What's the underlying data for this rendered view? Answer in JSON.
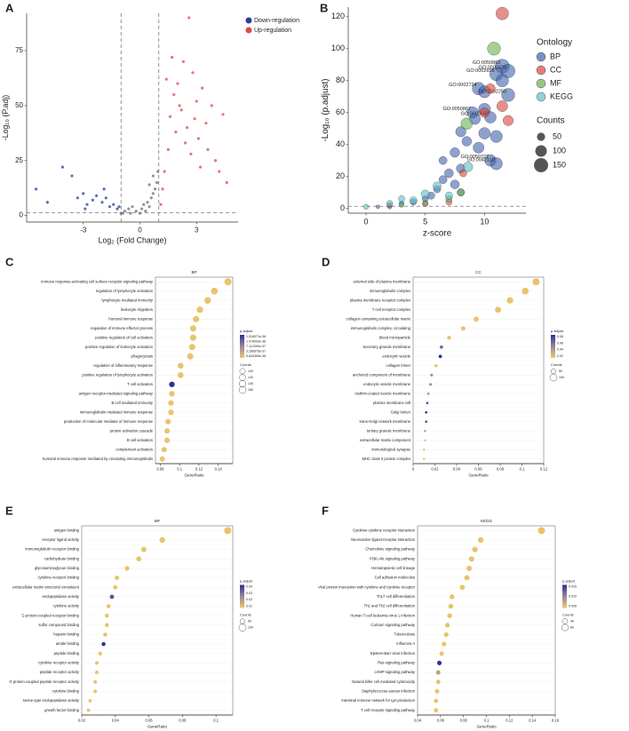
{
  "chart_data": [
    {
      "type": "volcano",
      "panel": "A",
      "xlabel": "Log₂ (Fold Change)",
      "ylabel": "-Log₁₀ (P.adj)",
      "xlim": [
        -6,
        5.2
      ],
      "ylim": [
        -3,
        92
      ],
      "xticks": [
        -3,
        0,
        3
      ],
      "yticks": [
        0,
        25,
        50,
        75
      ],
      "vlines": [
        -1,
        1
      ],
      "hline": 1.3,
      "legend": "top-right",
      "series": [
        {
          "color": "#707070",
          "x": [
            -1.0,
            -0.8,
            -0.6,
            -0.5,
            -0.4,
            -0.2,
            0,
            0.1,
            0.2,
            0.3,
            0.4,
            0.5,
            0.6,
            0.7,
            0.8,
            0.9,
            0.95,
            -0.9,
            0.5,
            0.7
          ],
          "values": [
            1,
            2,
            3,
            1,
            4,
            2,
            1,
            3,
            5,
            2,
            6,
            4,
            8,
            10,
            12,
            15,
            20,
            1,
            14,
            18
          ]
        },
        {
          "name": "Down-regulation",
          "color": "#263f9b",
          "x": [
            -5.5,
            -4.9,
            -4.1,
            -3.6,
            -3.3,
            -3.0,
            -2.8,
            -2.5,
            -2.3,
            -2.0,
            -1.8,
            -1.6,
            -1.4,
            -1.2,
            -1.1,
            -2.9,
            -1.9
          ],
          "values": [
            12,
            6,
            22,
            18,
            8,
            10,
            5,
            7,
            9,
            6,
            8,
            4,
            5,
            3,
            4,
            3,
            12
          ]
        },
        {
          "name": "Up-regulation",
          "color": "#d94a4a",
          "x": [
            1.1,
            1.2,
            1.3,
            1.5,
            1.6,
            1.8,
            1.9,
            2.0,
            2.2,
            2.3,
            2.5,
            2.6,
            2.8,
            3.0,
            3.1,
            3.3,
            3.5,
            3.6,
            3.8,
            4.0,
            4.2,
            4.4,
            4.6,
            1.4,
            1.7,
            2.1,
            2.4,
            2.7,
            2.9,
            3.2
          ],
          "values": [
            5,
            12,
            20,
            30,
            45,
            55,
            38,
            60,
            48,
            70,
            40,
            90,
            65,
            52,
            35,
            58,
            42,
            30,
            50,
            25,
            20,
            46,
            15,
            62,
            72,
            50,
            33,
            28,
            44,
            22
          ]
        }
      ]
    },
    {
      "type": "bubble",
      "panel": "B",
      "xlabel": "z-score",
      "ylabel": "-Log₁₀ (p.adjust)",
      "xlim": [
        -1.5,
        13.5
      ],
      "ylim": [
        -3,
        126
      ],
      "xticks": [
        0,
        5,
        10
      ],
      "yticks": [
        0,
        20,
        40,
        60,
        80,
        100,
        120
      ],
      "hline": 1.3,
      "legend_title": "Ontology",
      "size_title": "Counts",
      "size_legend": [
        50,
        100,
        150
      ],
      "series": [
        {
          "name": "BP",
          "color": "#3f62ad",
          "x": [
            11.5,
            12,
            11,
            11.5,
            9.5,
            10,
            12,
            9,
            10,
            10.5,
            9.2,
            10,
            11,
            9.5,
            10.5,
            11,
            8,
            8.5,
            7.5,
            8,
            7,
            6.5,
            7.5,
            6,
            5.5,
            5,
            4,
            3,
            2,
            1,
            6.5,
            8
          ],
          "values": [
            89,
            86,
            84,
            80,
            75,
            73,
            71,
            60,
            62,
            57,
            56,
            47,
            45,
            38,
            30,
            28,
            48,
            42,
            35,
            25,
            22,
            18,
            15,
            12,
            8,
            6,
            4,
            3,
            2,
            1,
            30,
            10
          ],
          "sizes": [
            150,
            140,
            130,
            120,
            120,
            110,
            130,
            100,
            110,
            100,
            90,
            100,
            110,
            90,
            100,
            110,
            80,
            70,
            70,
            60,
            60,
            50,
            60,
            40,
            40,
            30,
            30,
            20,
            20,
            10,
            50,
            40
          ],
          "labels": [
            "GO:0050863",
            "GO:0002429",
            "GO:0002696",
            null,
            "GO:0002724",
            null,
            "GO:0002250",
            "GO:0050867",
            null,
            "GO:0002697",
            null,
            null,
            null,
            null,
            "GO:0050727",
            "GO:0042110",
            null,
            null,
            null,
            null,
            null,
            null,
            null,
            null,
            null,
            null,
            null,
            null,
            null,
            null,
            null,
            null
          ]
        },
        {
          "name": "CC",
          "color": "#d9443b",
          "x": [
            11.5,
            10.5,
            11.5,
            10,
            12,
            8.2,
            2,
            5,
            7
          ],
          "values": [
            122,
            75,
            64,
            60,
            55,
            22,
            1,
            3,
            4
          ],
          "sizes": [
            120,
            70,
            90,
            70,
            80,
            40,
            15,
            25,
            30
          ]
        },
        {
          "name": "MF",
          "color": "#6ab04c",
          "x": [
            10.8,
            8.5,
            5,
            7,
            3,
            8
          ],
          "values": [
            100,
            53,
            3,
            6,
            2,
            10
          ],
          "sizes": [
            130,
            100,
            20,
            30,
            15,
            40
          ]
        },
        {
          "name": "KEGG",
          "color": "#5bc0c8",
          "x": [
            8.6,
            5,
            4,
            6,
            2,
            7,
            0,
            3
          ],
          "values": [
            26,
            9,
            5,
            14,
            3,
            8,
            1,
            6
          ],
          "sizes": [
            70,
            50,
            40,
            50,
            30,
            40,
            20,
            30
          ]
        }
      ]
    },
    {
      "type": "dot",
      "panel": "C",
      "title": "BP",
      "xlabel": "GeneRatio",
      "xlim": [
        0.075,
        0.155
      ],
      "xticks": [
        0.08,
        0.1,
        0.12,
        0.14
      ],
      "color_title": "p.adjust",
      "colorbar_labels": [
        "1.516071e-36",
        "1.076053e-36",
        "7.112390e-37",
        "3.280876e-37",
        "5.644359e-38"
      ],
      "size_title": "Counts",
      "size_legend": [
        100,
        120,
        140,
        160
      ],
      "categories": [
        "immune response-activating cell surface receptor signaling pathway",
        "regulation of lymphocyte activation",
        "lymphocyte mediated immunity",
        "leukocyte migration",
        "humoral immune response",
        "regulation of immune effector process",
        "positive regulation of cell activation",
        "positive regulation of leukocyte activation",
        "phagocytosis",
        "regulation of inflammatory response",
        "positive regulation of lymphocyte activation",
        "T cell activation",
        "antigen receptor-mediated signaling pathway",
        "B cell mediated immunity",
        "immunoglobulin mediated immune response",
        "production of molecular mediator of immune response",
        "protein activation cascade",
        "B cell activation",
        "complement activation",
        "humoral immune response mediated by circulating immunoglobulin"
      ],
      "values": [
        0.15,
        0.136,
        0.129,
        0.121,
        0.117,
        0.114,
        0.114,
        0.113,
        0.111,
        0.101,
        0.101,
        0.092,
        0.092,
        0.091,
        0.091,
        0.088,
        0.087,
        0.087,
        0.084,
        0.082
      ],
      "sizes": [
        160,
        145,
        138,
        130,
        126,
        123,
        123,
        122,
        120,
        109,
        109,
        99,
        99,
        98,
        98,
        95,
        94,
        94,
        91,
        88
      ],
      "colors": [
        "#e8c46a",
        "#e8c46a",
        "#e8c46a",
        "#e8c46a",
        "#e8c46a",
        "#e8c46a",
        "#e8c46a",
        "#e8c46a",
        "#e8c46a",
        "#e8c46a",
        "#e8c46a",
        "#2e3192",
        "#e8c46a",
        "#e8c46a",
        "#e8c46a",
        "#e8c46a",
        "#e8c46a",
        "#e8c46a",
        "#e8c46a",
        "#e8c46a"
      ]
    },
    {
      "type": "dot",
      "panel": "D",
      "title": "CC",
      "xlabel": "GeneRatio",
      "xlim": [
        0,
        0.12
      ],
      "xticks": [
        0.0,
        0.02,
        0.04,
        0.06,
        0.08,
        0.1,
        0.12
      ],
      "color_title": "p.adjust",
      "colorbar_labels": [
        "0.08",
        "0.06",
        "0.04",
        "0.02"
      ],
      "size_title": "Counts",
      "size_legend": [
        50,
        100
      ],
      "categories": [
        "external side of plasma membrane",
        "immunoglobulin complex",
        "plasma membrane receptor complex",
        "T cell receptor complex",
        "collagen-containing extracellular matrix",
        "immunoglobulin complex, circulating",
        "blood microparticle",
        "secretory granule membrane",
        "endocytic vesicle",
        "collagen trimer",
        "anchored component of membrane",
        "endocytic vesicle membrane",
        "clathrin-coated vesicle membrane",
        "plasma membrane raft",
        "Golgi lumen",
        "trans-Golgi network membrane",
        "tertiary granule membrane",
        "extracellular matrix component",
        "immunological synapse",
        "MHC class II protein complex"
      ],
      "values": [
        0.113,
        0.103,
        0.089,
        0.078,
        0.058,
        0.046,
        0.033,
        0.026,
        0.025,
        0.021,
        0.017,
        0.016,
        0.014,
        0.013,
        0.012,
        0.012,
        0.011,
        0.011,
        0.01,
        0.01
      ],
      "sizes": [
        100,
        92,
        80,
        70,
        52,
        41,
        30,
        23,
        22,
        19,
        15,
        14,
        13,
        12,
        11,
        11,
        10,
        10,
        9,
        9
      ],
      "colors": [
        "#e8c46a",
        "#e8c46a",
        "#e8c46a",
        "#e8c46a",
        "#e8c46a",
        "#e8c46a",
        "#e8c46a",
        "#7a6aa0",
        "#2e3192",
        "#e8c46a",
        "#9a86a0",
        "#9a86a0",
        "#b9a07a",
        "#5a4f9a",
        "#3e3a94",
        "#5a4f9a",
        "#b9a07a",
        "#e8c46a",
        "#e8c46a",
        "#e8c46a"
      ]
    },
    {
      "type": "dot",
      "panel": "E",
      "title": "MF",
      "xlabel": "GeneRatio",
      "xlim": [
        0.02,
        0.11
      ],
      "xticks": [
        0.02,
        0.04,
        0.06,
        0.08,
        0.1
      ],
      "color_title": "p.adjust",
      "colorbar_labels": [
        "0.04",
        "0.03",
        "0.02",
        "0.01"
      ],
      "size_title": "Counts",
      "size_legend": [
        50,
        100
      ],
      "categories": [
        "antigen binding",
        "receptor ligand activity",
        "immunoglobulin receptor binding",
        "carbohydrate binding",
        "glycosaminoglycan binding",
        "cytokine receptor binding",
        "extracellular matrix structural constituent",
        "endopeptidase activity",
        "cytokine activity",
        "G protein-coupled receptor binding",
        "sulfur compound binding",
        "heparin binding",
        "amide binding",
        "peptide binding",
        "cytokine receptor activity",
        "peptide receptor activity",
        "G protein-coupled peptide receptor activity",
        "cytokine binding",
        "serine-type endopeptidase activity",
        "growth factor binding"
      ],
      "values": [
        0.107,
        0.068,
        0.057,
        0.054,
        0.047,
        0.041,
        0.04,
        0.038,
        0.036,
        0.035,
        0.035,
        0.034,
        0.033,
        0.031,
        0.029,
        0.029,
        0.028,
        0.028,
        0.025,
        0.024
      ],
      "sizes": [
        95,
        61,
        51,
        48,
        42,
        37,
        36,
        34,
        32,
        31,
        31,
        30,
        29,
        28,
        26,
        26,
        25,
        25,
        22,
        21
      ],
      "colors": [
        "#e8c46a",
        "#e8c46a",
        "#e8c46a",
        "#e8c46a",
        "#e8c46a",
        "#e8c46a",
        "#e8c46a",
        "#5a4f9a",
        "#e8c46a",
        "#e8c46a",
        "#e8c46a",
        "#e8c46a",
        "#2e3192",
        "#e8c46a",
        "#e8c46a",
        "#e8c46a",
        "#e8c46a",
        "#e8c46a",
        "#e8c46a",
        "#e8c46a"
      ]
    },
    {
      "type": "dot",
      "panel": "F",
      "title": "KEGG",
      "xlabel": "GeneRatio",
      "xlim": [
        0.04,
        0.16
      ],
      "xticks": [
        0.04,
        0.06,
        0.08,
        0.1,
        0.12,
        0.14,
        0.16
      ],
      "color_title": "p.adjust",
      "colorbar_labels": [
        "0.015",
        "0.010",
        "0.005"
      ],
      "size_title": "Counts",
      "size_legend": [
        40,
        60
      ],
      "categories": [
        "Cytokine-cytokine receptor interaction",
        "Neuroactive ligand-receptor interaction",
        "Chemokine signaling pathway",
        "PI3K-Akt signaling pathway",
        "Hematopoietic cell lineage",
        "Cell adhesion molecules",
        "Viral protein interaction with cytokine and cytokine receptor",
        "Th17 cell differentiation",
        "Th1 and Th2 cell differentiation",
        "Human T-cell leukemia virus 1 infection",
        "Calcium signaling pathway",
        "Tuberculosis",
        "Influenza A",
        "Epstein-Barr virus infection",
        "Ras signaling pathway",
        "cAMP signaling pathway",
        "Natural killer cell mediated cytotoxicity",
        "Staphylococcus aureus infection",
        "Intestinal immune network for IgA production",
        "T cell receptor signaling pathway"
      ],
      "values": [
        0.148,
        0.095,
        0.09,
        0.087,
        0.085,
        0.083,
        0.079,
        0.07,
        0.069,
        0.068,
        0.066,
        0.065,
        0.063,
        0.061,
        0.059,
        0.058,
        0.058,
        0.057,
        0.056,
        0.056
      ],
      "sizes": [
        70,
        45,
        43,
        41,
        40,
        39,
        37,
        33,
        33,
        32,
        31,
        31,
        30,
        29,
        28,
        27,
        27,
        27,
        26,
        26
      ],
      "colors": [
        "#e8c46a",
        "#e8c46a",
        "#e8c46a",
        "#e8c46a",
        "#e8c46a",
        "#e8c46a",
        "#e8c46a",
        "#e8c46a",
        "#e8c46a",
        "#e8c46a",
        "#e8c46a",
        "#e8c46a",
        "#e8c46a",
        "#e8c46a",
        "#2e3192",
        "#b9a07a",
        "#e8c46a",
        "#e8c46a",
        "#e8c46a",
        "#e8c46a"
      ]
    }
  ]
}
